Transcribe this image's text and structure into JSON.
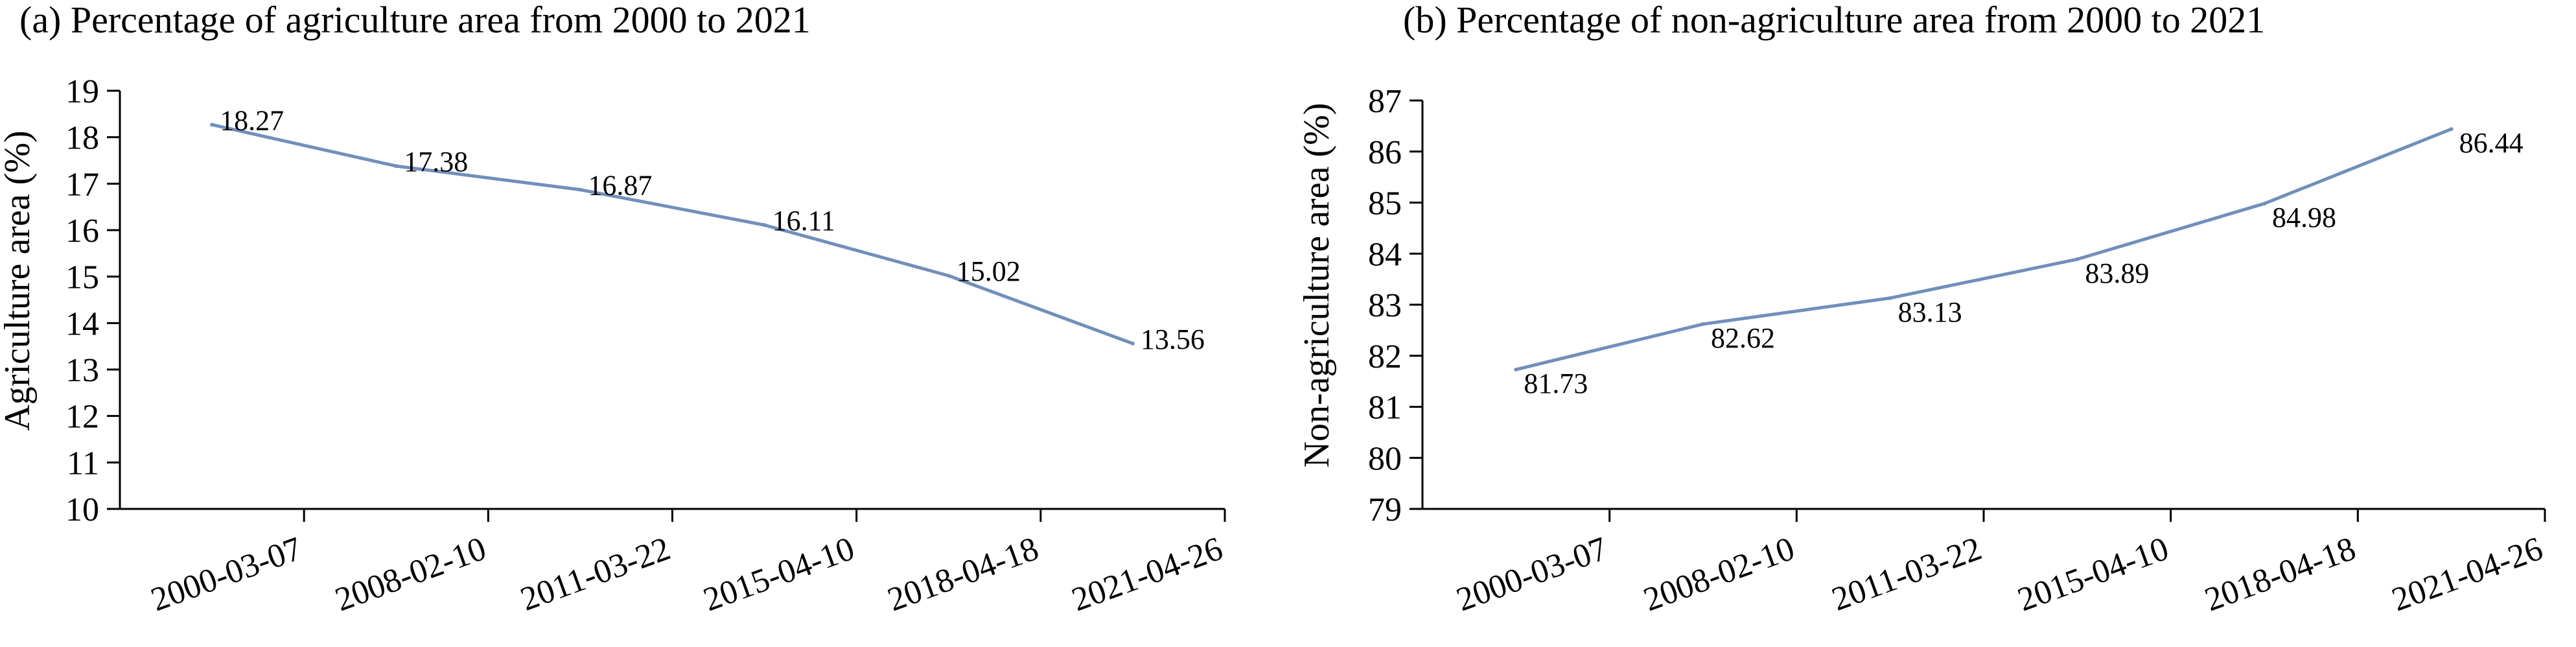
{
  "chart_data": [
    {
      "type": "line",
      "title": "(a) Percentage of agriculture area from 2000 to 2021",
      "xlabel": "",
      "ylabel": "Agriculture area (%)",
      "categories": [
        "2000-03-07",
        "2008-02-10",
        "2011-03-22",
        "2015-04-10",
        "2018-04-18",
        "2021-04-26"
      ],
      "yticks": [
        "10",
        "11",
        "12",
        "13",
        "14",
        "15",
        "16",
        "17",
        "18",
        "19"
      ],
      "ylim": [
        10,
        19
      ],
      "series": [
        {
          "values": [
            18.27,
            17.38,
            16.87,
            16.11,
            15.02,
            13.56
          ],
          "labels": [
            "18.27",
            "17.38",
            "16.87",
            "16.11",
            "15.02",
            "13.56"
          ],
          "color": "#7090bb"
        }
      ],
      "grid": false
    },
    {
      "type": "line",
      "title": "(b) Percentage of non-agriculture area from 2000 to 2021",
      "xlabel": "",
      "ylabel": "Non-agriculture area (%)",
      "categories": [
        "2000-03-07",
        "2008-02-10",
        "2011-03-22",
        "2015-04-10",
        "2018-04-18",
        "2021-04-26"
      ],
      "yticks": [
        "79",
        "80",
        "81",
        "82",
        "83",
        "84",
        "85",
        "86",
        "87"
      ],
      "ylim": [
        79,
        87
      ],
      "series": [
        {
          "values": [
            81.73,
            82.62,
            83.13,
            83.89,
            84.98,
            86.44
          ],
          "labels": [
            "81.73",
            "82.62",
            "83.13",
            "83.89",
            "84.98",
            "86.44"
          ],
          "color": "#7090bb"
        }
      ],
      "grid": false
    }
  ]
}
